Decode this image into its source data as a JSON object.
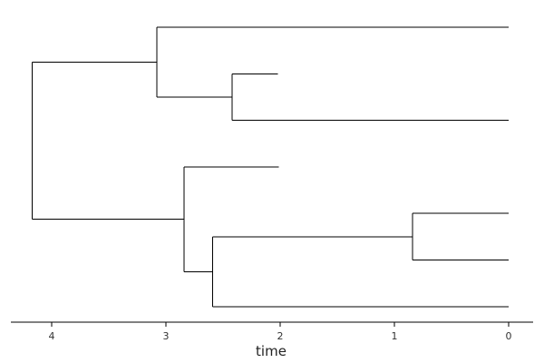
{
  "tree": {
    "axis": {
      "title": "time",
      "ticks": [
        4,
        3,
        2,
        1,
        0
      ],
      "tick_labels": [
        "4",
        "3",
        "2",
        "1",
        "0"
      ],
      "range": [
        4.4,
        -0.2
      ]
    },
    "root": {
      "age": 4.17,
      "children": [
        {
          "age": 3.08,
          "children": [
            {
              "age": 0
            },
            {
              "age": 2.42,
              "children": [
                {
                  "age": 2.02
                },
                {
                  "age": 0
                }
              ]
            }
          ]
        },
        {
          "age": 2.84,
          "children": [
            {
              "age": 2.01
            },
            {
              "age": 2.59,
              "children": [
                {
                  "age": 0.84,
                  "children": [
                    {
                      "age": 0
                    },
                    {
                      "age": 0
                    }
                  ]
                },
                {
                  "age": 0
                }
              ]
            }
          ]
        }
      ]
    }
  }
}
